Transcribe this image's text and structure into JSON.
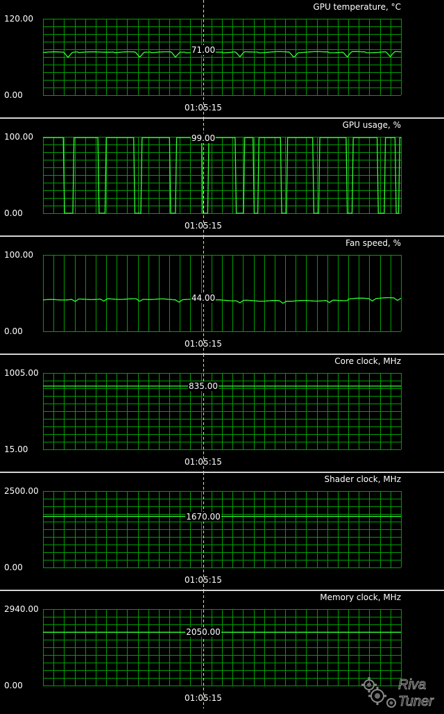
{
  "cursor_time": "01:05:15",
  "colors": {
    "background": "#000000",
    "grid": "#00a000",
    "trace": "#33ff33",
    "cursor": "#e8e860",
    "divider": "#d4d4d4",
    "text": "#ffffff"
  },
  "panels": [
    {
      "title": "GPU temperature, °C",
      "ymax": "120.00",
      "ymin": "0.00",
      "cursor_value": "71.00",
      "range": [
        0,
        120
      ],
      "trace": "temperature"
    },
    {
      "title": "GPU usage, %",
      "ymax": "100.00",
      "ymin": "0.00",
      "cursor_value": "99.00",
      "range": [
        0,
        100
      ],
      "trace": "usage"
    },
    {
      "title": "Fan speed, %",
      "ymax": "100.00",
      "ymin": "0.00",
      "cursor_value": "44.00",
      "range": [
        0,
        100
      ],
      "trace": "fan"
    },
    {
      "title": "Core clock, MHz",
      "ymax": "1005.00",
      "ymin": "15.00",
      "cursor_value": "835.00",
      "range": [
        15,
        1005
      ],
      "trace": "flat",
      "value": 835
    },
    {
      "title": "Shader clock, MHz",
      "ymax": "2500.00",
      "ymin": "0.00",
      "cursor_value": "1670.00",
      "range": [
        0,
        2500
      ],
      "trace": "flat",
      "value": 1670
    },
    {
      "title": "Memory clock, MHz",
      "ymax": "2940.00",
      "ymin": "0.00",
      "cursor_value": "2050.00",
      "range": [
        0,
        2940
      ],
      "trace": "flat",
      "value": 2050
    }
  ],
  "logo": {
    "text": "Riva Tuner",
    "icon": "gear-icon"
  }
}
